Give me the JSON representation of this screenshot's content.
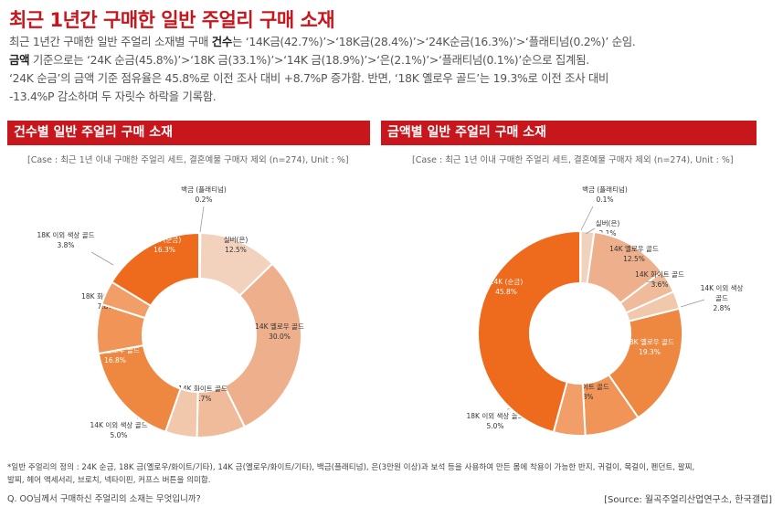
{
  "title": "최근 1년간 구매한 일반 주얼리 구매 소재",
  "summary": {
    "line1_pre": "최근 1년간 구매한 일반 주얼리 소재별 구매 ",
    "line1_bold": "건수",
    "line1_post": "는 ‘14K금(42.7%)’>‘18K금(28.4%)’>‘24K순금(16.3%)’>‘플래티넘(0.2%)’ 순임.",
    "line2_bold": "금액",
    "line2_post": " 기준으로는 ‘24K 순금(45.8%)’>‘18K 금(33.1%)’>‘14K 금(18.9%)’>‘은(2.1%)’>‘플래티넘(0.1%)’순으로 집계됨.",
    "line3": "‘24K 순금’의 금액 기준 점유율은 45.8%로 이전 조사 대비 +8.7%P 증가함. 반면, ‘18K 옐로우 골드’는 19.3%로 이전 조사 대비",
    "line4": "-13.4%P 감소하며 두 자릿수 하락을 기록함."
  },
  "left_panel": {
    "header": "건수별 일반 주얼리 구매 소재",
    "case_note": "[Case : 최근 1년 이내 구매한 주얼리 세트, 결혼예물 구매자 제외 (n=274), Unit : %]"
  },
  "right_panel": {
    "header": "금액별 일반 주얼리 구매 소재",
    "case_note": "[Case : 최근 1년 이내 구매한 주얼리 세트, 결혼예물 구매자 제외 (n=274), Unit : %]"
  },
  "chart_data": [
    {
      "type": "pie",
      "title": "건수별 일반 주얼리 구매 소재",
      "unit": "%",
      "slices": [
        {
          "label": "백금 (플래티넘)",
          "value": 0.2,
          "color": "#f4e0d2"
        },
        {
          "label": "실버(은)",
          "value": 12.5,
          "color": "#f2d2bd"
        },
        {
          "label": "14K 옐로우 골드",
          "value": 30.0,
          "color": "#eeb08c"
        },
        {
          "label": "14K 화이트 골드",
          "value": 7.7,
          "color": "#f0bb9a"
        },
        {
          "label": "14K 이외 색상 골드",
          "value": 5.0,
          "color": "#f2c8ad"
        },
        {
          "label": "18K 옐로우 골드",
          "value": 16.8,
          "color": "#ee8840"
        },
        {
          "label": "18K 화이트 골드",
          "value": 7.8,
          "color": "#f09458"
        },
        {
          "label": "18K 이외 색상 골드",
          "value": 3.8,
          "color": "#f19e68"
        },
        {
          "label": "24K (순금)",
          "value": 16.3,
          "color": "#ee6a1c"
        }
      ]
    },
    {
      "type": "pie",
      "title": "금액별 일반 주얼리 구매 소재",
      "unit": "%",
      "slices": [
        {
          "label": "백금 (플래티넘)",
          "value": 0.1,
          "color": "#f4e0d2"
        },
        {
          "label": "실버(은)",
          "value": 2.1,
          "color": "#f2d2bd"
        },
        {
          "label": "14K 옐로우 골드",
          "value": 12.5,
          "color": "#eeb08c"
        },
        {
          "label": "14K 화이트 골드",
          "value": 3.6,
          "color": "#f0bb9a"
        },
        {
          "label": "14K 이외 색상 골드",
          "value": 2.8,
          "color": "#f2c8ad"
        },
        {
          "label": "18K 옐로우 골드",
          "value": 19.3,
          "color": "#ee8840"
        },
        {
          "label": "18K 화이트 골드",
          "value": 8.8,
          "color": "#f09458"
        },
        {
          "label": "18K 이외 색상 골드",
          "value": 5.0,
          "color": "#f19e68"
        },
        {
          "label": "24K (순금)",
          "value": 45.8,
          "color": "#ee6a1c"
        }
      ]
    }
  ],
  "footnote": {
    "line1": "*일반 주얼리의 정의 : 24K 순금, 18K 금(옐로우/화이트/기타), 14K 금(옐로우/화이트/기타), 백금(플래티넘), 은(3만원 이상)과 보석 등을 사용하여 만든 몸에 착용이 가능한 반지, 귀걸이, 목걸이, 펜던트, 팔찌,",
    "line2": "발찌, 헤어 액세서리, 브로치, 넥타이핀, 커프스 버튼을 의미함."
  },
  "question": "Q. OO님께서 구매하신 주얼리의 소재는 무엇입니까?",
  "source": "[Source: 월곡주얼리산업연구소, 한국갤럽]"
}
